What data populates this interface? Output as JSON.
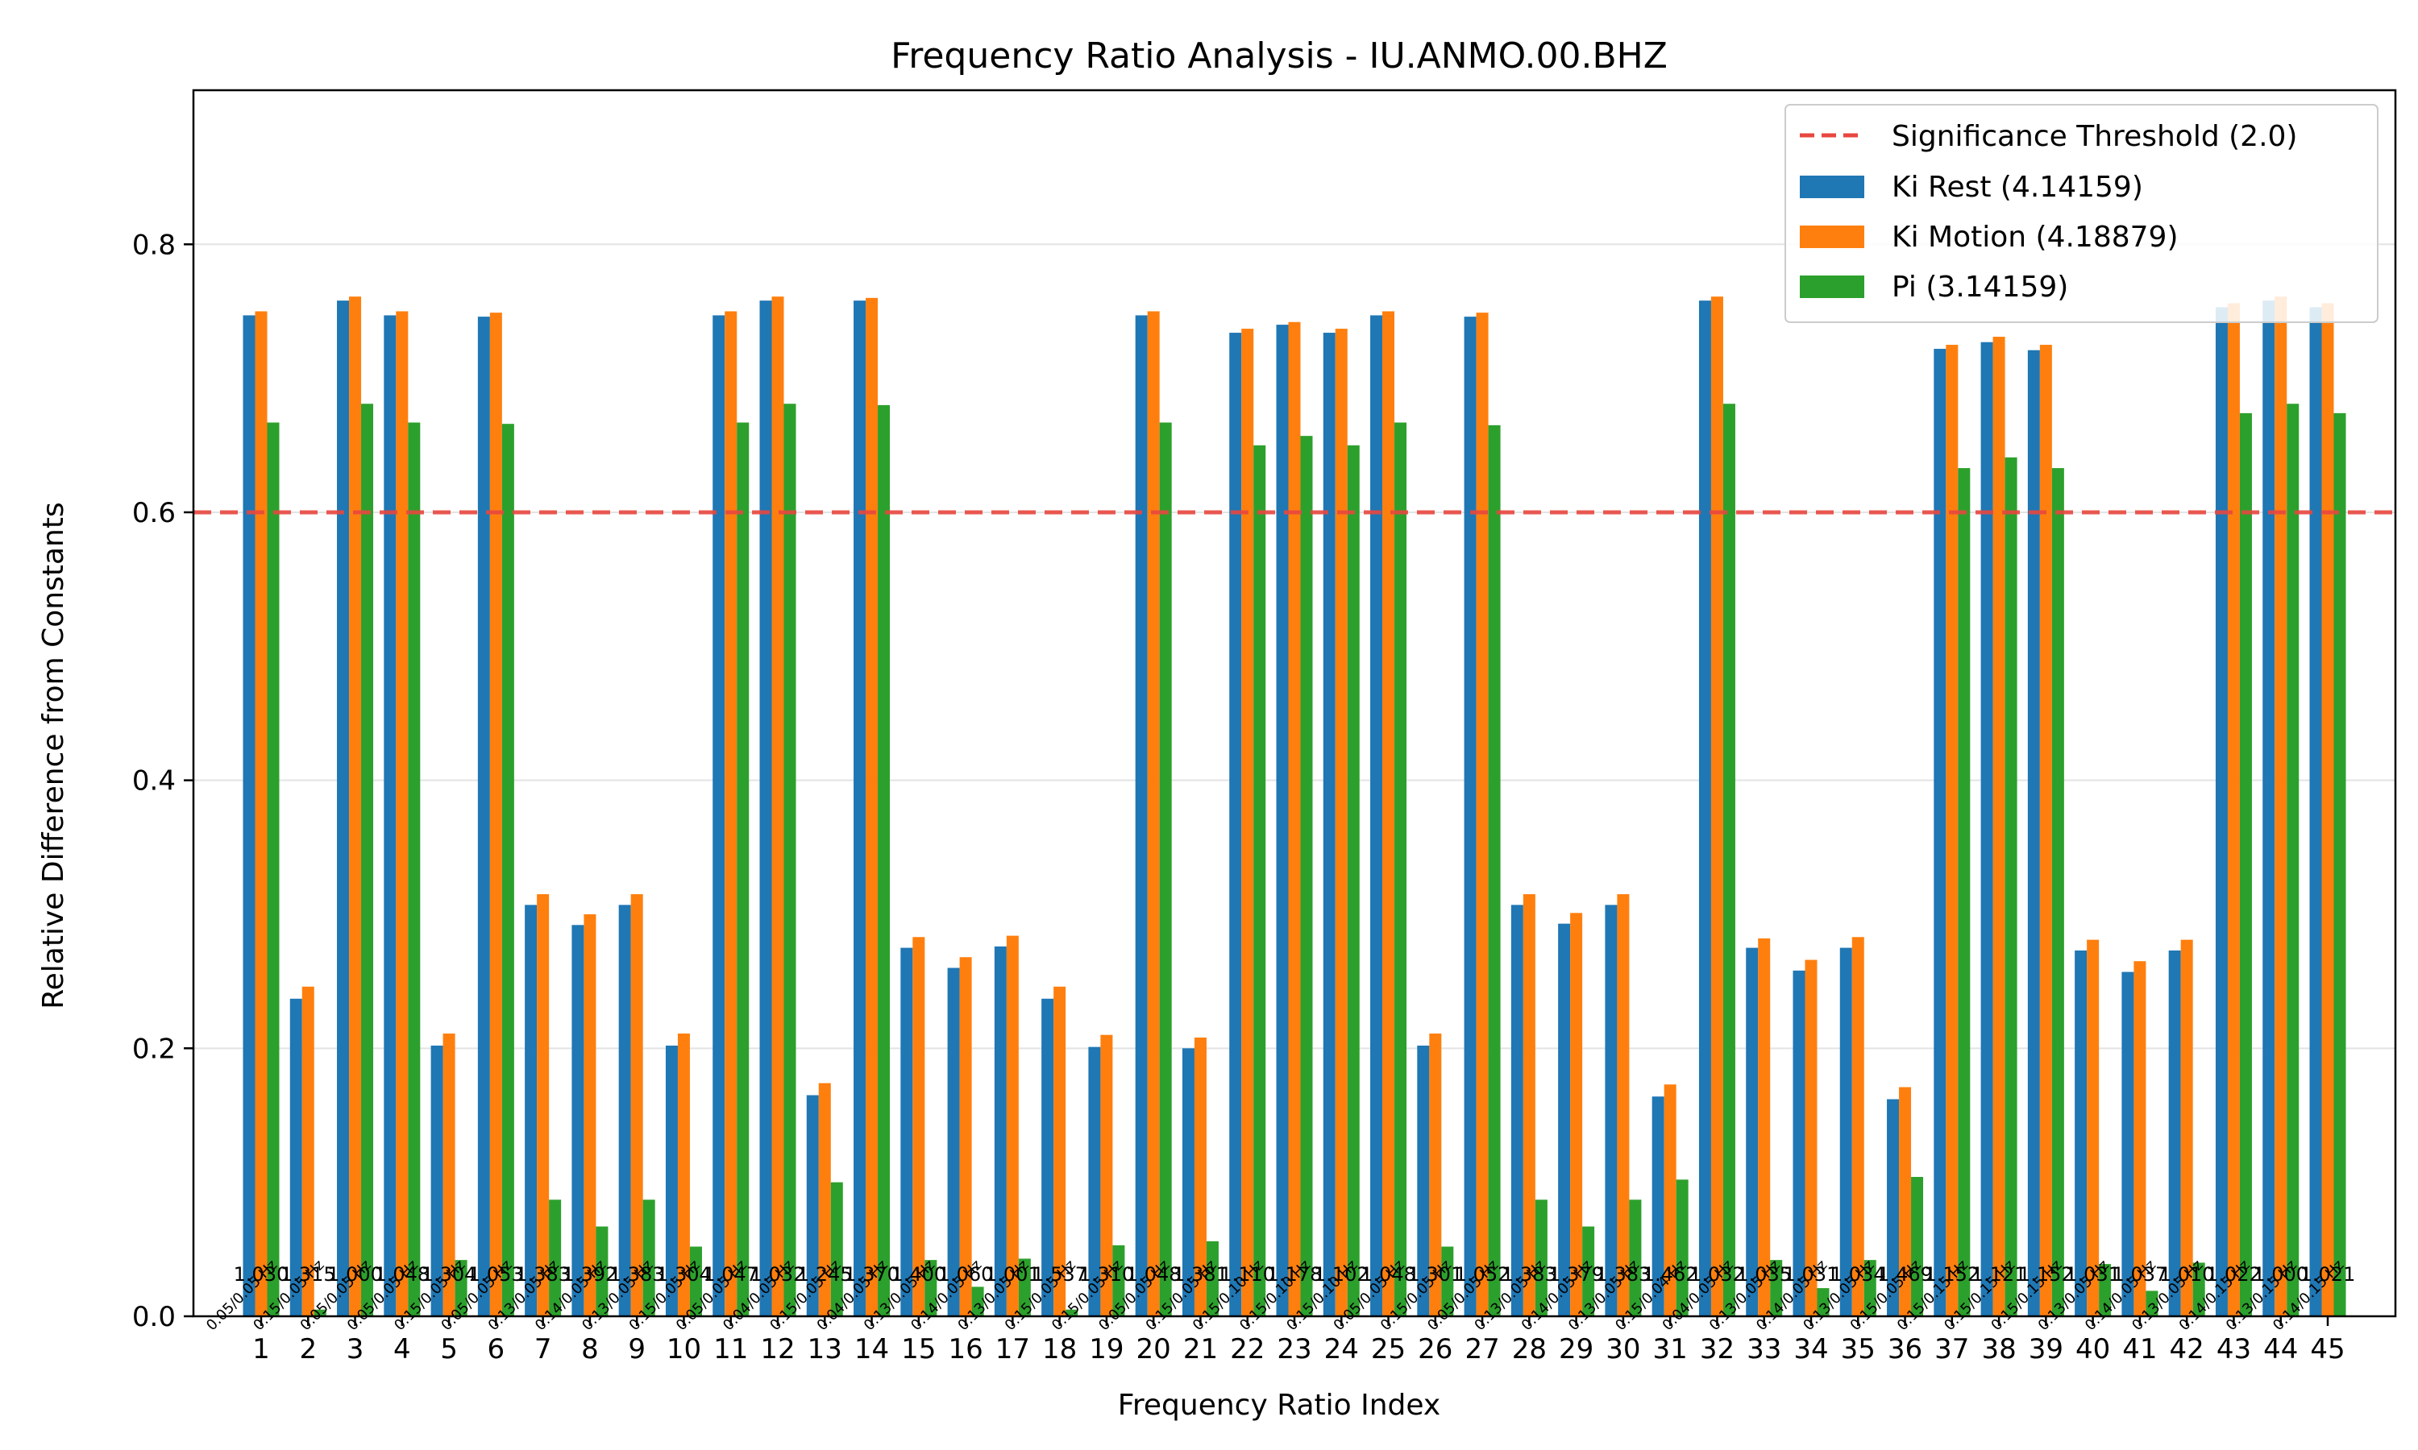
{
  "chart_data": {
    "type": "bar",
    "title": "Frequency Ratio Analysis - IU.ANMO.00.BHZ",
    "xlabel": "Frequency Ratio Index",
    "ylabel": "Relative Difference from Constants",
    "ylim": [
      0,
      0.915
    ],
    "yticks": [
      0.0,
      0.2,
      0.4,
      0.6,
      0.8
    ],
    "ytick_labels": [
      "0.0",
      "0.2",
      "0.4",
      "0.6",
      "0.8"
    ],
    "grid": "horizontal",
    "legend_position": "top-right",
    "threshold": {
      "label": "Significance Threshold (2.0)",
      "value": 0.6,
      "color": "#e8473f"
    },
    "categories": [
      "1",
      "2",
      "3",
      "4",
      "5",
      "6",
      "7",
      "8",
      "9",
      "10",
      "11",
      "12",
      "13",
      "14",
      "15",
      "16",
      "17",
      "18",
      "19",
      "20",
      "21",
      "22",
      "23",
      "24",
      "25",
      "26",
      "27",
      "28",
      "29",
      "30",
      "31",
      "32",
      "33",
      "34",
      "35",
      "36",
      "37",
      "38",
      "39",
      "40",
      "41",
      "42",
      "43",
      "44",
      "45"
    ],
    "series": [
      {
        "name": "Ki Rest (4.14159)",
        "color": "#1f77b4",
        "values": [
          0.747,
          0.237,
          0.758,
          0.747,
          0.202,
          0.746,
          0.307,
          0.292,
          0.307,
          0.202,
          0.747,
          0.758,
          0.165,
          0.758,
          0.275,
          0.26,
          0.276,
          0.237,
          0.201,
          0.747,
          0.2,
          0.734,
          0.74,
          0.734,
          0.747,
          0.202,
          0.746,
          0.307,
          0.293,
          0.307,
          0.164,
          0.758,
          0.275,
          0.258,
          0.275,
          0.162,
          0.722,
          0.727,
          0.721,
          0.273,
          0.257,
          0.273,
          0.753,
          0.758,
          0.753
        ]
      },
      {
        "name": "Ki Motion (4.18879)",
        "color": "#ff7f0e",
        "values": [
          0.75,
          0.246,
          0.761,
          0.75,
          0.211,
          0.749,
          0.315,
          0.3,
          0.315,
          0.211,
          0.75,
          0.761,
          0.174,
          0.76,
          0.283,
          0.268,
          0.284,
          0.246,
          0.21,
          0.75,
          0.208,
          0.737,
          0.742,
          0.737,
          0.75,
          0.211,
          0.749,
          0.315,
          0.301,
          0.315,
          0.173,
          0.761,
          0.282,
          0.266,
          0.283,
          0.171,
          0.725,
          0.731,
          0.725,
          0.281,
          0.265,
          0.281,
          0.756,
          0.761,
          0.756
        ]
      },
      {
        "name": "Pi (3.14159)",
        "color": "#2ca02c",
        "values": [
          0.667,
          0.005,
          0.681,
          0.667,
          0.042,
          0.666,
          0.087,
          0.067,
          0.087,
          0.052,
          0.667,
          0.681,
          0.1,
          0.68,
          0.042,
          0.022,
          0.043,
          0.005,
          0.053,
          0.667,
          0.056,
          0.65,
          0.657,
          0.65,
          0.667,
          0.052,
          0.665,
          0.087,
          0.067,
          0.087,
          0.102,
          0.681,
          0.042,
          0.021,
          0.042,
          0.104,
          0.633,
          0.641,
          0.633,
          0.039,
          0.019,
          0.04,
          0.674,
          0.681,
          0.674
        ]
      }
    ],
    "bar_labels": [
      "1.030",
      "1.315",
      "1.000",
      "1.048",
      "1.304",
      "1.053",
      "1.383",
      "1.392",
      "1.383",
      "1.304",
      "1.047",
      "1.032",
      "1.245",
      "1.370",
      "1.400",
      "1.060",
      "1.001",
      "1.537",
      "1.310",
      "1.048",
      "1.381",
      "1.110",
      "1.178",
      "1.102",
      "1.048",
      "1.301",
      "1.052",
      "1.383",
      "1.379",
      "1.383",
      "1.462",
      "1.032",
      "1.035",
      "1.031",
      "1.034",
      "1.469",
      "1.152",
      "1.121",
      "1.152",
      "1.031",
      "1.037",
      "1.010",
      "1.022",
      "1.000",
      "1.021"
    ],
    "freq_labels": [
      "0.05/0.05 Hz",
      "0.15/0.05 Hz",
      "0.05/0.05 Hz",
      "0.05/0.05 Hz",
      "0.15/0.05 Hz",
      "0.05/0.05 Hz",
      "0.13/0.05 Hz",
      "0.14/0.05 Hz",
      "0.13/0.05 Hz",
      "0.15/0.05 Hz",
      "0.05/0.05 Hz",
      "0.04/0.05 Hz",
      "0.15/0.05 Hz",
      "0.04/0.05 Hz",
      "0.13/0.05 Hz",
      "0.14/0.05 Hz",
      "0.13/0.05 Hz",
      "0.15/0.05 Hz",
      "0.15/0.05 Hz",
      "0.05/0.05 Hz",
      "0.15/0.05 Hz",
      "0.15/0.10 Hz",
      "0.15/0.10 Hz",
      "0.15/0.10 Hz",
      "0.05/0.05 Hz",
      "0.15/0.05 Hz",
      "0.05/0.05 Hz",
      "0.13/0.05 Hz",
      "0.14/0.05 Hz",
      "0.13/0.05 Hz",
      "0.15/0.04 Hz",
      "0.04/0.05 Hz",
      "0.13/0.05 Hz",
      "0.14/0.05 Hz",
      "0.13/0.05 Hz",
      "0.15/0.05 Hz",
      "0.15/0.15 Hz",
      "0.15/0.15 Hz",
      "0.15/0.15 Hz",
      "0.13/0.05 Hz",
      "0.14/0.05 Hz",
      "0.13/0.05 Hz",
      "0.14/0.15 Hz",
      "0.13/0.15 Hz",
      "0.14/0.15 Hz"
    ]
  }
}
